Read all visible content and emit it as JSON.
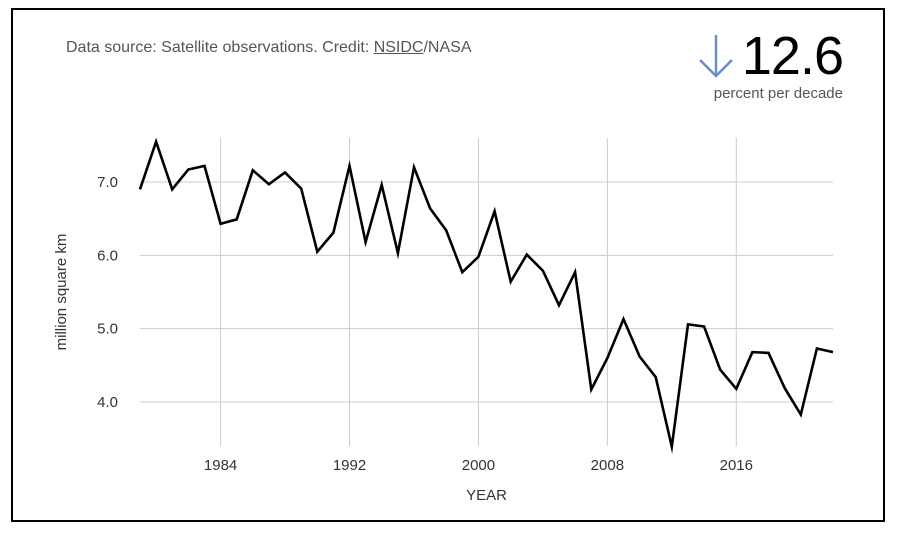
{
  "header": {
    "source_text": "Data source: Satellite observations. Credit: ",
    "source_link": "NSIDC",
    "source_suffix": "/NASA"
  },
  "stat": {
    "arrow_icon": "down-arrow-icon",
    "value": "12.6",
    "unit": "percent per decade",
    "arrow_color": "#6a8ec9"
  },
  "chart_data": {
    "type": "line",
    "title": "",
    "xlabel": "YEAR",
    "ylabel": "million square km",
    "xlim": [
      1979,
      2022
    ],
    "ylim": [
      3.4,
      7.6
    ],
    "x_ticks": [
      1984,
      1992,
      2000,
      2008,
      2016
    ],
    "y_ticks": [
      4.0,
      5.0,
      6.0,
      7.0
    ],
    "y_tick_labels": [
      "4.0",
      "5.0",
      "6.0",
      "7.0"
    ],
    "grid": true,
    "line_color": "#000000",
    "series": [
      {
        "x": [
          1979,
          1980,
          1981,
          1982,
          1983,
          1984,
          1985,
          1986,
          1987,
          1988,
          1989,
          1990,
          1991,
          1992,
          1993,
          1994,
          1995,
          1996,
          1997,
          1998,
          1999,
          2000,
          2001,
          2002,
          2003,
          2004,
          2005,
          2006,
          2007,
          2008,
          2009,
          2010,
          2011,
          2012,
          2013,
          2014,
          2015,
          2016,
          2017,
          2018,
          2019,
          2020,
          2021,
          2022
        ],
        "values": [
          6.9,
          7.55,
          6.9,
          7.17,
          7.22,
          6.43,
          6.49,
          7.16,
          6.97,
          7.13,
          6.91,
          6.05,
          6.31,
          7.22,
          6.18,
          6.96,
          6.03,
          7.2,
          6.64,
          6.34,
          5.77,
          5.98,
          6.6,
          5.64,
          6.01,
          5.79,
          5.32,
          5.77,
          4.17,
          4.6,
          5.13,
          4.62,
          4.34,
          3.39,
          5.06,
          5.03,
          4.44,
          4.18,
          4.68,
          4.67,
          4.19,
          3.83,
          4.73,
          4.68
        ]
      }
    ]
  }
}
